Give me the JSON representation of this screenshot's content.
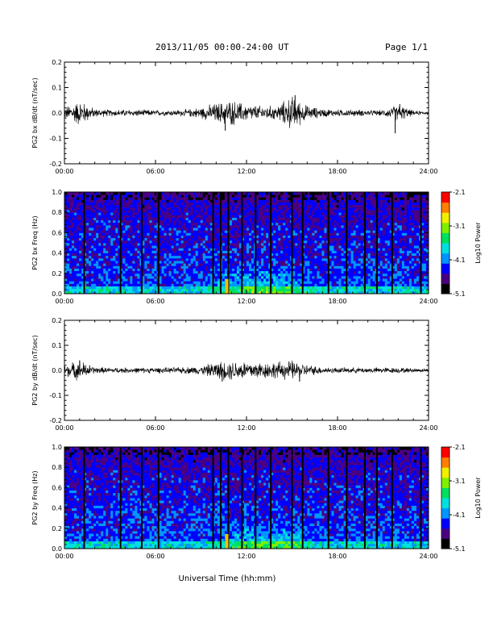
{
  "header": {
    "title": "2013/11/05  00:00-24:00 UT",
    "page": "Page 1/1"
  },
  "footer": {
    "xlabel": "Universal Time (hh:mm)"
  },
  "colorbar": {
    "ticks": [
      "-2.1",
      "-3.1",
      "-4.1",
      "-5.1"
    ],
    "label": "Log10 Power",
    "colors": [
      "#000000",
      "#4b0082",
      "#0000ff",
      "#0096ff",
      "#00e0e0",
      "#00e060",
      "#80f000",
      "#f0f000",
      "#ff8000",
      "#ff0000"
    ]
  },
  "chart_data": [
    {
      "type": "line",
      "ylabel": "PG2 bx dB/dt (nT/sec)",
      "ylim": [
        -0.2,
        0.2
      ],
      "yticks": [
        "0.2",
        "0.1",
        "0.0",
        "-0.1",
        "-0.2"
      ],
      "xlim": [
        0,
        24
      ],
      "xticks": [
        "00:00",
        "06:00",
        "12:00",
        "18:00",
        "24:00"
      ],
      "grid": false,
      "x_hours": [
        0,
        1,
        2,
        3,
        4,
        5,
        6,
        7,
        8,
        9,
        10,
        11,
        12,
        13,
        14,
        15,
        16,
        17,
        18,
        19,
        20,
        21,
        22,
        23,
        24
      ],
      "envelope_amplitude": [
        0.02,
        0.045,
        0.015,
        0.012,
        0.012,
        0.012,
        0.01,
        0.01,
        0.012,
        0.02,
        0.035,
        0.045,
        0.03,
        0.025,
        0.025,
        0.06,
        0.025,
        0.015,
        0.012,
        0.012,
        0.01,
        0.01,
        0.03,
        0.008,
        0.006
      ],
      "spikes": [
        {
          "x": 21.8,
          "y": -0.08
        },
        {
          "x": 22.1,
          "y": 0.035
        },
        {
          "x": 15.2,
          "y": 0.07
        },
        {
          "x": 10.6,
          "y": -0.07
        }
      ]
    },
    {
      "type": "heatmap",
      "ylabel": "PG2 bx Freq (Hz)",
      "ylim": [
        0.0,
        1.0
      ],
      "yticks": [
        "1.0",
        "0.8",
        "0.6",
        "0.4",
        "0.2",
        "0.0"
      ],
      "xlim": [
        0,
        24
      ],
      "xticks": [
        "00:00",
        "06:00",
        "12:00",
        "18:00",
        "24:00"
      ],
      "zlim": [
        -5.1,
        -2.1
      ],
      "zlabel": "Log10 Power",
      "gap_lines_hours": [
        1.3,
        3.7,
        5.1,
        6.2,
        9.8,
        10.3,
        10.8,
        11.7,
        12.6,
        13.6,
        15.0,
        15.7,
        17.4,
        18.6,
        19.8,
        20.6,
        21.6,
        23.5
      ]
    },
    {
      "type": "line",
      "ylabel": "PG2 by dB/dt (nT/sec)",
      "ylim": [
        -0.2,
        0.2
      ],
      "yticks": [
        "0.2",
        "0.1",
        "0.0",
        "-0.1",
        "-0.2"
      ],
      "xlim": [
        0,
        24
      ],
      "xticks": [
        "00:00",
        "06:00",
        "12:00",
        "18:00",
        "24:00"
      ],
      "grid": false,
      "x_hours": [
        0,
        1,
        2,
        3,
        4,
        5,
        6,
        7,
        8,
        9,
        10,
        11,
        12,
        13,
        14,
        15,
        16,
        17,
        18,
        19,
        20,
        21,
        22,
        23,
        24
      ],
      "envelope_amplitude": [
        0.02,
        0.035,
        0.012,
        0.01,
        0.01,
        0.01,
        0.01,
        0.01,
        0.012,
        0.015,
        0.03,
        0.035,
        0.035,
        0.03,
        0.03,
        0.035,
        0.02,
        0.012,
        0.01,
        0.01,
        0.01,
        0.01,
        0.01,
        0.008,
        0.006
      ],
      "spikes": [
        {
          "x": 1.0,
          "y": 0.04
        },
        {
          "x": 10.4,
          "y": -0.045
        },
        {
          "x": 15.5,
          "y": -0.045
        }
      ]
    },
    {
      "type": "heatmap",
      "ylabel": "PG2 by Freq (Hz)",
      "ylim": [
        0.0,
        1.0
      ],
      "yticks": [
        "1.0",
        "0.8",
        "0.6",
        "0.4",
        "0.2",
        "0.0"
      ],
      "xlim": [
        0,
        24
      ],
      "xticks": [
        "00:00",
        "06:00",
        "12:00",
        "18:00",
        "24:00"
      ],
      "zlim": [
        -5.1,
        -2.1
      ],
      "zlabel": "Log10 Power",
      "gap_lines_hours": [
        1.3,
        3.7,
        5.1,
        6.2,
        9.8,
        10.3,
        10.8,
        11.7,
        12.6,
        13.6,
        15.0,
        15.7,
        17.4,
        18.6,
        19.8,
        20.6,
        21.6,
        23.5
      ]
    }
  ]
}
